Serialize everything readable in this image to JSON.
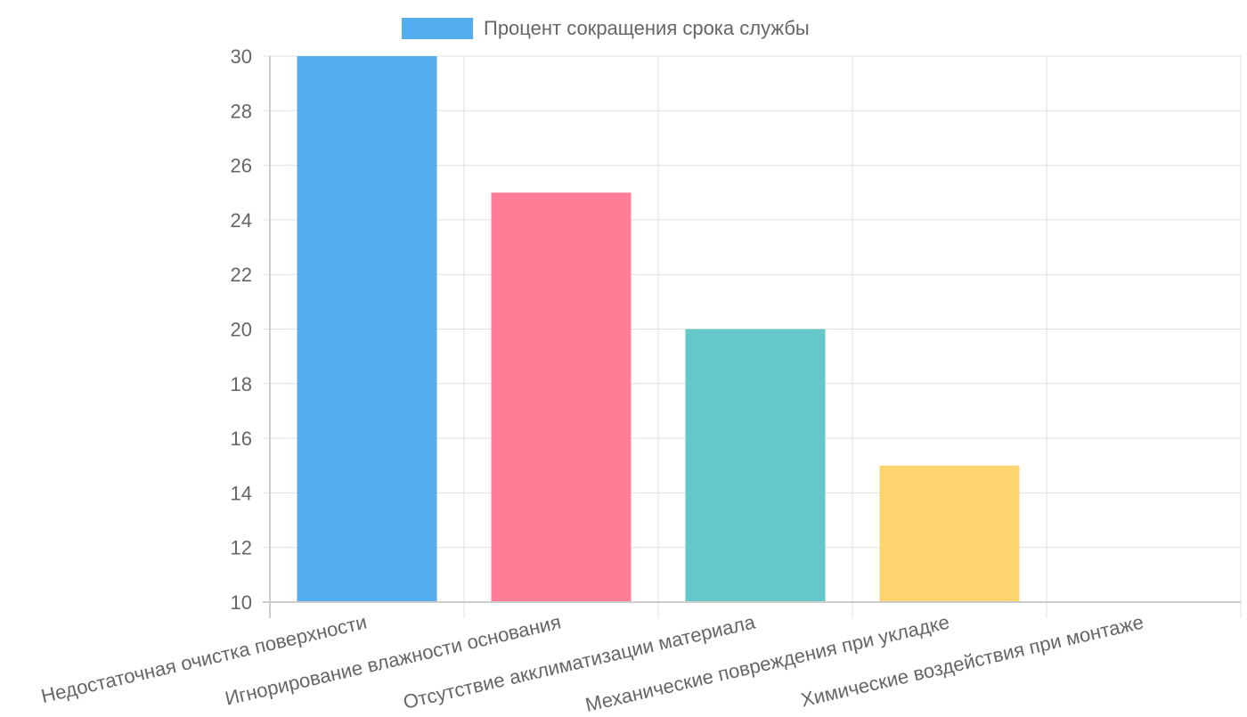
{
  "chart_data": {
    "type": "bar",
    "title": "",
    "xlabel": "",
    "ylabel": "",
    "categories": [
      "Недостаточная очистка поверхности",
      "Игнорирование влажности основания",
      "Отсутствие акклиматизации материала",
      "Механические повреждения при укладке",
      "Химические воздействия при монтаже"
    ],
    "series": [
      {
        "name": "Процент сокращения срока службы",
        "values": [
          30,
          25,
          20,
          15,
          10
        ]
      }
    ],
    "colors": [
      "#52aeee",
      "#ff7d97",
      "#66c7c8",
      "#ffd46e",
      "#b99bff"
    ],
    "ylim": [
      10,
      30
    ],
    "yticks": [
      10,
      12,
      14,
      16,
      18,
      20,
      22,
      24,
      26,
      28,
      30
    ],
    "grid": true,
    "legend_position": "top"
  }
}
